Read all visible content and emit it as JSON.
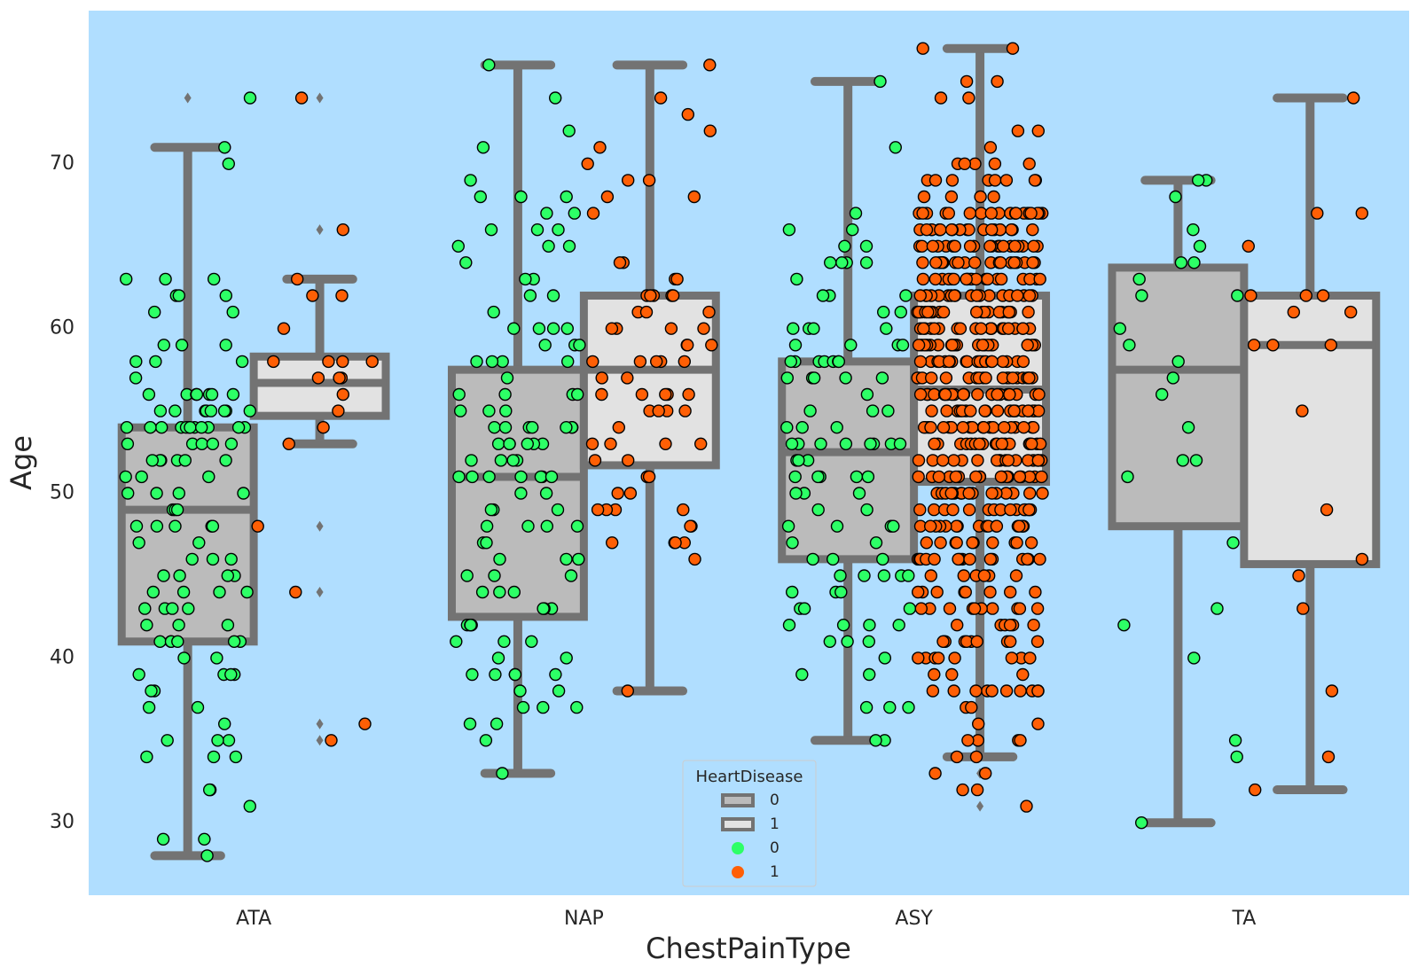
{
  "chart_data": {
    "type": "box",
    "xlabel": "ChestPainType",
    "ylabel": "Age",
    "categories": [
      "ATA",
      "NAP",
      "ASY",
      "TA"
    ],
    "ylim": [
      25.6,
      79.3
    ],
    "yticks": [
      30,
      40,
      50,
      60,
      70
    ],
    "legend": {
      "title": "HeartDisease",
      "position": "bottom-center",
      "entries": [
        {
          "kind": "box",
          "label": "0",
          "color": "#BBBBBB"
        },
        {
          "kind": "box",
          "label": "1",
          "color": "#E2E2E2"
        },
        {
          "kind": "point",
          "label": "0",
          "color": "#2DFF66"
        },
        {
          "kind": "point",
          "label": "1",
          "color": "#FF5F05"
        }
      ]
    },
    "colors": {
      "plot_background": "#B0DEFF",
      "box_edge": "#737373",
      "box_fill_0": "#BBBBBB",
      "box_fill_1": "#E2E2E2",
      "point_0": "#2DFF66",
      "point_1": "#FF5F05"
    },
    "box_series": [
      {
        "name": "0",
        "boxes": [
          {
            "category": "ATA",
            "whislo": 28,
            "q1": 41,
            "med": 49,
            "q3": 54,
            "whishi": 71,
            "fliers": [
              74
            ]
          },
          {
            "category": "NAP",
            "whislo": 33,
            "q1": 42.5,
            "med": 51,
            "q3": 57.5,
            "whishi": 76,
            "fliers": []
          },
          {
            "category": "ASY",
            "whislo": 35,
            "q1": 46,
            "med": 52.5,
            "q3": 58,
            "whishi": 75,
            "fliers": []
          },
          {
            "category": "TA",
            "whislo": 30,
            "q1": 48,
            "med": 57.5,
            "q3": 63.7,
            "whishi": 69,
            "fliers": []
          }
        ]
      },
      {
        "name": "1",
        "boxes": [
          {
            "category": "ATA",
            "whislo": 53,
            "q1": 54.7,
            "med": 56.7,
            "q3": 58.3,
            "whishi": 63,
            "fliers": [
              35,
              36,
              44,
              48,
              66,
              74
            ]
          },
          {
            "category": "NAP",
            "whislo": 38,
            "q1": 51.7,
            "med": 57.5,
            "q3": 62,
            "whishi": 76,
            "fliers": []
          },
          {
            "category": "ASY",
            "whislo": 34,
            "q1": 50.7,
            "med": 56.3,
            "q3": 62,
            "whishi": 77,
            "fliers": [
              31,
              32,
              33
            ]
          },
          {
            "category": "TA",
            "whislo": 32,
            "q1": 45.7,
            "med": 59,
            "q3": 62,
            "whishi": 74,
            "fliers": []
          }
        ]
      }
    ],
    "points": [
      {
        "hue": "0",
        "category": "ATA",
        "ages": [
          28,
          29,
          29,
          31,
          32,
          32,
          34,
          34,
          34,
          35,
          35,
          35,
          36,
          37,
          37,
          38,
          38,
          39,
          39,
          39,
          39,
          40,
          40,
          41,
          41,
          41,
          41,
          41,
          41,
          42,
          42,
          42,
          43,
          43,
          43,
          43,
          44,
          44,
          44,
          44,
          45,
          45,
          45,
          45,
          46,
          46,
          46,
          47,
          47,
          48,
          48,
          48,
          48,
          48,
          49,
          49,
          49,
          50,
          50,
          50,
          50,
          51,
          51,
          51,
          52,
          52,
          52,
          52,
          52,
          52,
          53,
          53,
          53,
          53,
          53,
          54,
          54,
          54,
          54,
          54,
          54,
          54,
          54,
          54,
          54,
          54,
          54,
          55,
          55,
          55,
          55,
          55,
          55,
          55,
          55,
          56,
          56,
          56,
          56,
          56,
          56,
          56,
          57,
          58,
          58,
          58,
          59,
          59,
          59,
          61,
          61,
          62,
          62,
          62,
          63,
          63,
          63,
          70,
          71,
          74
        ]
      },
      {
        "hue": "1",
        "category": "ATA",
        "ages": [
          35,
          36,
          44,
          48,
          53,
          54,
          55,
          56,
          57,
          57,
          57,
          58,
          58,
          58,
          58,
          60,
          62,
          62,
          63,
          66,
          74
        ]
      },
      {
        "hue": "0",
        "category": "NAP",
        "ages": [
          33,
          35,
          36,
          36,
          37,
          37,
          37,
          38,
          38,
          39,
          39,
          39,
          39,
          39,
          40,
          40,
          41,
          41,
          41,
          42,
          42,
          42,
          42,
          43,
          43,
          43,
          44,
          44,
          44,
          45,
          45,
          45,
          46,
          46,
          46,
          47,
          47,
          48,
          48,
          48,
          48,
          49,
          49,
          49,
          50,
          50,
          51,
          51,
          51,
          51,
          51,
          51,
          51,
          52,
          52,
          52,
          52,
          53,
          53,
          53,
          53,
          53,
          53,
          54,
          54,
          54,
          54,
          54,
          54,
          54,
          55,
          55,
          55,
          56,
          56,
          56,
          56,
          57,
          58,
          58,
          58,
          58,
          59,
          59,
          59,
          60,
          60,
          60,
          60,
          61,
          62,
          62,
          63,
          63,
          64,
          65,
          65,
          65,
          66,
          66,
          66,
          67,
          67,
          68,
          68,
          68,
          69,
          71,
          72,
          74,
          76
        ]
      },
      {
        "hue": "1",
        "category": "NAP",
        "ages": [
          38,
          46,
          47,
          47,
          47,
          47,
          48,
          48,
          49,
          49,
          49,
          49,
          50,
          50,
          51,
          51,
          52,
          52,
          53,
          53,
          53,
          53,
          54,
          55,
          55,
          55,
          55,
          56,
          56,
          56,
          56,
          56,
          57,
          57,
          58,
          58,
          58,
          58,
          58,
          59,
          59,
          59,
          60,
          60,
          60,
          60,
          61,
          61,
          61,
          62,
          62,
          62,
          62,
          62,
          63,
          63,
          64,
          64,
          67,
          68,
          68,
          69,
          69,
          70,
          71,
          72,
          73,
          74,
          76
        ]
      },
      {
        "hue": "0",
        "category": "ASY",
        "ages": [
          35,
          35,
          37,
          37,
          37,
          39,
          39,
          40,
          41,
          41,
          41,
          42,
          42,
          42,
          42,
          43,
          43,
          43,
          44,
          44,
          44,
          45,
          45,
          45,
          45,
          45,
          46,
          46,
          46,
          47,
          47,
          48,
          48,
          48,
          48,
          49,
          49,
          50,
          50,
          50,
          51,
          51,
          51,
          51,
          51,
          52,
          52,
          52,
          53,
          53,
          53,
          53,
          53,
          53,
          53,
          53,
          54,
          54,
          54,
          55,
          55,
          55,
          56,
          57,
          57,
          57,
          57,
          57,
          58,
          58,
          58,
          58,
          58,
          58,
          58,
          59,
          59,
          59,
          59,
          60,
          60,
          60,
          60,
          61,
          61,
          62,
          62,
          62,
          63,
          64,
          64,
          64,
          64,
          65,
          65,
          66,
          66,
          67,
          71,
          75
        ]
      },
      {
        "hue": "1",
        "category": "ASY",
        "ages": [
          31,
          32,
          32,
          33,
          33,
          34,
          34,
          35,
          35,
          35,
          35,
          36,
          36,
          37,
          37,
          38,
          38,
          38,
          38,
          38,
          38,
          38,
          38,
          38,
          38,
          39,
          39,
          39,
          40,
          40,
          40,
          40,
          40,
          40,
          40,
          40,
          41,
          41,
          41,
          41,
          41,
          41,
          41,
          41,
          41,
          41,
          42,
          42,
          42,
          42,
          42,
          42,
          43,
          43,
          43,
          43,
          43,
          43,
          43,
          43,
          43,
          43,
          44,
          44,
          44,
          44,
          44,
          44,
          44,
          44,
          45,
          45,
          45,
          45,
          45,
          45,
          46,
          46,
          46,
          46,
          46,
          46,
          46,
          46,
          46,
          46,
          46,
          46,
          46,
          46,
          46,
          47,
          47,
          47,
          47,
          47,
          47,
          47,
          47,
          47,
          47,
          48,
          48,
          48,
          48,
          48,
          48,
          48,
          48,
          48,
          48,
          48,
          48,
          48,
          48,
          48,
          48,
          48,
          49,
          49,
          49,
          49,
          49,
          49,
          49,
          49,
          49,
          49,
          49,
          49,
          49,
          49,
          49,
          49,
          50,
          50,
          50,
          50,
          50,
          50,
          50,
          50,
          50,
          50,
          50,
          50,
          50,
          50,
          50,
          50,
          50,
          50,
          51,
          51,
          51,
          51,
          51,
          51,
          51,
          51,
          51,
          51,
          51,
          51,
          51,
          51,
          51,
          51,
          51,
          51,
          52,
          52,
          52,
          52,
          52,
          52,
          52,
          52,
          52,
          52,
          52,
          52,
          52,
          52,
          52,
          52,
          52,
          52,
          53,
          53,
          53,
          53,
          53,
          53,
          53,
          53,
          53,
          53,
          53,
          53,
          53,
          53,
          53,
          53,
          53,
          53,
          54,
          54,
          54,
          54,
          54,
          54,
          54,
          54,
          54,
          54,
          54,
          54,
          54,
          54,
          54,
          54,
          54,
          54,
          54,
          54,
          55,
          55,
          55,
          55,
          55,
          55,
          55,
          55,
          55,
          55,
          55,
          55,
          55,
          55,
          55,
          55,
          55,
          55,
          55,
          55,
          56,
          56,
          56,
          56,
          56,
          56,
          56,
          56,
          56,
          56,
          56,
          56,
          56,
          56,
          56,
          56,
          56,
          56,
          56,
          56,
          57,
          57,
          57,
          57,
          57,
          57,
          57,
          57,
          57,
          57,
          57,
          57,
          57,
          57,
          57,
          57,
          57,
          57,
          57,
          57,
          58,
          58,
          58,
          58,
          58,
          58,
          58,
          58,
          58,
          58,
          58,
          58,
          58,
          58,
          58,
          58,
          58,
          58,
          58,
          58,
          59,
          59,
          59,
          59,
          59,
          59,
          59,
          59,
          59,
          59,
          59,
          59,
          59,
          59,
          59,
          59,
          59,
          59,
          59,
          59,
          60,
          60,
          60,
          60,
          60,
          60,
          60,
          60,
          60,
          60,
          60,
          60,
          60,
          60,
          60,
          60,
          60,
          60,
          60,
          60,
          61,
          61,
          61,
          61,
          61,
          61,
          61,
          61,
          61,
          61,
          61,
          61,
          61,
          61,
          61,
          61,
          61,
          61,
          61,
          61,
          62,
          62,
          62,
          62,
          62,
          62,
          62,
          62,
          62,
          62,
          62,
          62,
          62,
          62,
          62,
          62,
          62,
          62,
          62,
          62,
          63,
          63,
          63,
          63,
          63,
          63,
          63,
          63,
          63,
          63,
          63,
          63,
          63,
          63,
          63,
          63,
          63,
          63,
          63,
          63,
          64,
          64,
          64,
          64,
          64,
          64,
          64,
          64,
          64,
          64,
          64,
          64,
          64,
          64,
          64,
          64,
          64,
          64,
          64,
          64,
          65,
          65,
          65,
          65,
          65,
          65,
          65,
          65,
          65,
          65,
          65,
          65,
          65,
          65,
          65,
          65,
          65,
          65,
          65,
          65,
          66,
          66,
          66,
          66,
          66,
          66,
          66,
          66,
          66,
          66,
          66,
          66,
          66,
          66,
          66,
          66,
          66,
          66,
          66,
          66,
          67,
          67,
          67,
          67,
          67,
          67,
          67,
          67,
          67,
          67,
          67,
          67,
          67,
          67,
          67,
          67,
          67,
          67,
          67,
          67,
          68,
          68,
          68,
          68,
          69,
          69,
          69,
          69,
          69,
          69,
          69,
          69,
          69,
          70,
          70,
          70,
          70,
          70,
          71,
          72,
          72,
          74,
          74,
          75,
          75,
          77,
          77
        ]
      },
      {
        "hue": "0",
        "category": "TA",
        "ages": [
          30,
          34,
          35,
          40,
          42,
          43,
          47,
          51,
          52,
          52,
          54,
          56,
          57,
          58,
          59,
          60,
          62,
          62,
          63,
          64,
          64,
          65,
          66,
          68,
          69,
          69
        ]
      },
      {
        "hue": "1",
        "category": "TA",
        "ages": [
          32,
          34,
          38,
          43,
          45,
          46,
          49,
          55,
          59,
          59,
          59,
          61,
          61,
          62,
          62,
          62,
          65,
          67,
          67,
          74
        ]
      }
    ]
  }
}
